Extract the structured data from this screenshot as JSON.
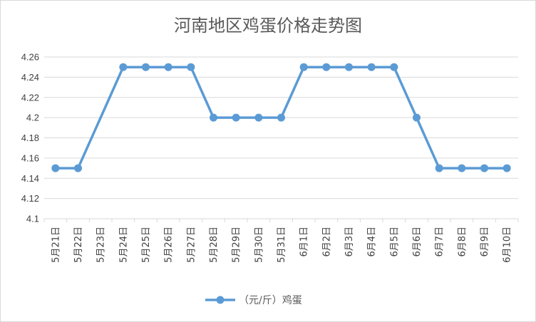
{
  "chart_data": {
    "type": "line",
    "title": "河南地区鸡蛋价格走势图",
    "xlabel": "",
    "ylabel": "",
    "categories": [
      "5月21日",
      "5月22日",
      "5月23日",
      "5月24日",
      "5月25日",
      "5月26日",
      "5月27日",
      "5月28日",
      "5月29日",
      "5月30日",
      "5月31日",
      "6月1日",
      "6月2日",
      "6月3日",
      "6月4日",
      "6月5日",
      "6月6日",
      "6月7日",
      "6月8日",
      "6月9日",
      "6月10日"
    ],
    "series": [
      {
        "name": "（元/斤）鸡蛋",
        "values": [
          4.15,
          4.15,
          null,
          4.25,
          4.25,
          4.25,
          4.25,
          4.2,
          4.2,
          4.2,
          4.2,
          4.25,
          4.25,
          4.25,
          4.25,
          4.25,
          4.2,
          4.15,
          4.15,
          4.15,
          4.15
        ],
        "color": "#5b9bd5"
      }
    ],
    "ylim": [
      4.1,
      4.26
    ],
    "yticks": [
      "4.1",
      "4.12",
      "4.14",
      "4.16",
      "4.18",
      "4.2",
      "4.22",
      "4.24",
      "4.26"
    ],
    "grid": true,
    "legend": "bottom"
  }
}
